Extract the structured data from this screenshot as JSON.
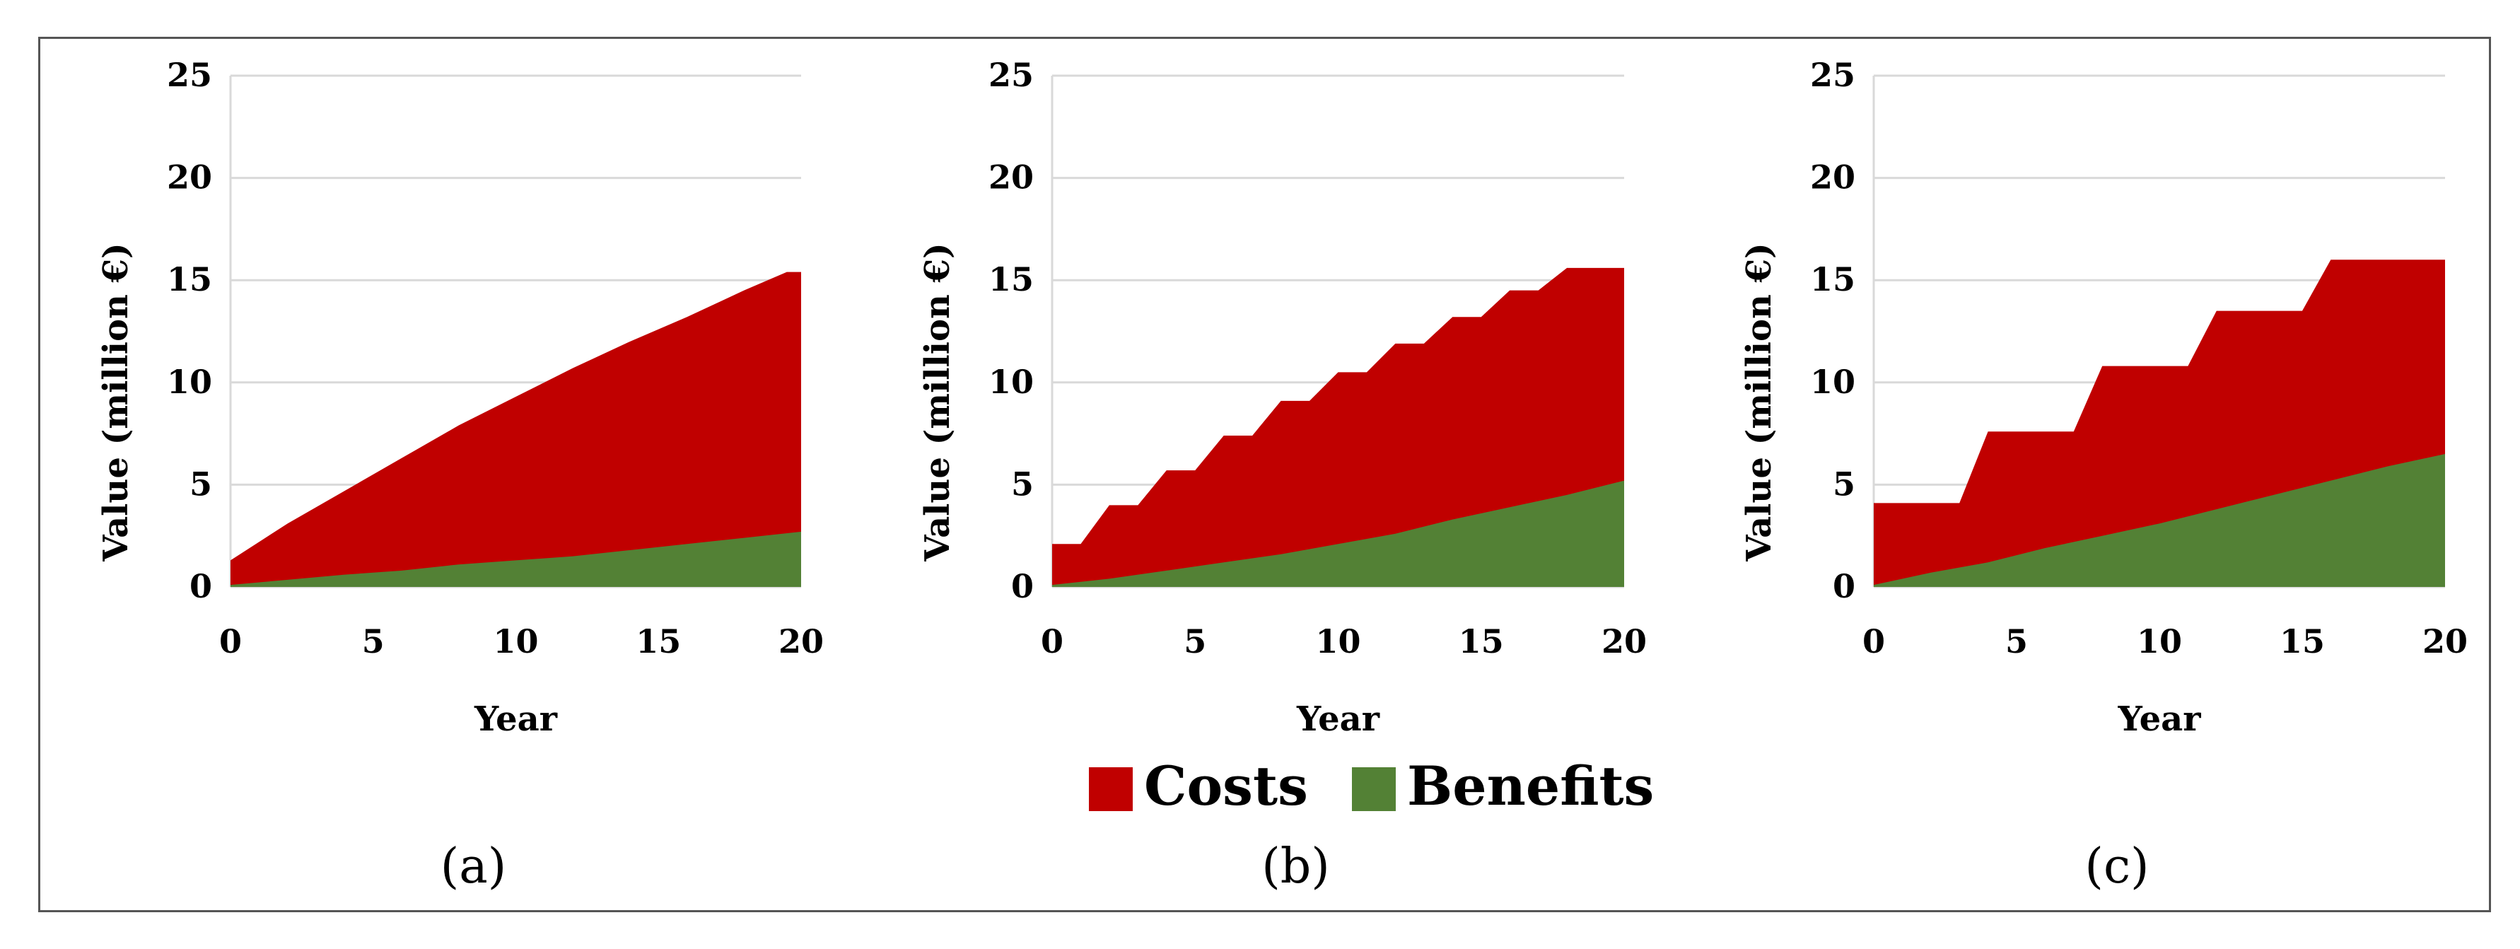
{
  "chart_data": [
    {
      "panel_label": "(a)",
      "type": "area",
      "stacked": false,
      "xlabel": "Year",
      "ylabel": "Value (million €)",
      "xlim": [
        0,
        20
      ],
      "ylim": [
        0,
        25
      ],
      "x_ticks": [
        "0",
        "5",
        "10",
        "15",
        "20"
      ],
      "y_ticks": [
        "0",
        "5",
        "10",
        "15",
        "20",
        "25"
      ],
      "grid": true,
      "series": [
        {
          "name": "Costs",
          "color": "#c00000",
          "x": [
            0,
            2,
            4,
            6,
            8,
            10,
            12,
            14,
            16,
            18,
            19.5,
            20
          ],
          "values": [
            1.3,
            3.1,
            4.7,
            6.3,
            7.9,
            9.3,
            10.7,
            12.0,
            13.2,
            14.5,
            15.4,
            15.4
          ]
        },
        {
          "name": "Benefits",
          "color": "#538135",
          "x": [
            0,
            2,
            4,
            6,
            8,
            10,
            12,
            14,
            16,
            18,
            20
          ],
          "values": [
            0.1,
            0.35,
            0.6,
            0.8,
            1.1,
            1.3,
            1.5,
            1.8,
            2.1,
            2.4,
            2.7
          ]
        }
      ]
    },
    {
      "panel_label": "(b)",
      "type": "area",
      "stacked": false,
      "xlabel": "Year",
      "ylabel": "Value (million €)",
      "xlim": [
        0,
        20
      ],
      "ylim": [
        0,
        25
      ],
      "x_ticks": [
        "0",
        "5",
        "10",
        "15",
        "20"
      ],
      "y_ticks": [
        "0",
        "5",
        "10",
        "15",
        "20",
        "25"
      ],
      "grid": true,
      "series": [
        {
          "name": "Costs",
          "color": "#c00000",
          "x": [
            0,
            1,
            2,
            3,
            4,
            5,
            6,
            7,
            8,
            9,
            10,
            11,
            12,
            13,
            14,
            15,
            16,
            17,
            18,
            19,
            20
          ],
          "values": [
            2.1,
            2.1,
            4.0,
            4.0,
            5.7,
            5.7,
            7.4,
            7.4,
            9.1,
            9.1,
            10.5,
            10.5,
            11.9,
            11.9,
            13.2,
            13.2,
            14.5,
            14.5,
            15.6,
            15.6,
            15.6
          ]
        },
        {
          "name": "Benefits",
          "color": "#538135",
          "x": [
            0,
            2,
            4,
            6,
            8,
            10,
            12,
            14,
            16,
            18,
            20
          ],
          "values": [
            0.1,
            0.4,
            0.8,
            1.2,
            1.6,
            2.1,
            2.6,
            3.3,
            3.9,
            4.5,
            5.2
          ]
        }
      ]
    },
    {
      "panel_label": "(c)",
      "type": "area",
      "stacked": false,
      "xlabel": "Year",
      "ylabel": "Value (million €)",
      "xlim": [
        0,
        20
      ],
      "ylim": [
        0,
        25
      ],
      "x_ticks": [
        "0",
        "5",
        "10",
        "15",
        "20"
      ],
      "y_ticks": [
        "0",
        "5",
        "10",
        "15",
        "20",
        "25"
      ],
      "grid": true,
      "series": [
        {
          "name": "Costs",
          "color": "#c00000",
          "x": [
            0,
            1,
            2,
            3,
            4,
            5,
            6,
            7,
            8,
            9,
            10,
            11,
            12,
            13,
            14,
            15,
            16,
            17,
            18,
            19,
            20
          ],
          "values": [
            4.1,
            4.1,
            4.1,
            4.1,
            7.6,
            7.6,
            7.6,
            7.6,
            10.8,
            10.8,
            10.8,
            10.8,
            13.5,
            13.5,
            13.5,
            13.5,
            16.0,
            16.0,
            16.0,
            16.0,
            16.0
          ]
        },
        {
          "name": "Benefits",
          "color": "#538135",
          "x": [
            0,
            2,
            4,
            6,
            8,
            10,
            12,
            14,
            16,
            18,
            20
          ],
          "values": [
            0.1,
            0.7,
            1.2,
            1.9,
            2.5,
            3.1,
            3.8,
            4.5,
            5.2,
            5.9,
            6.5
          ]
        }
      ]
    }
  ],
  "legend": {
    "items": [
      {
        "label": "Costs",
        "color": "#c00000"
      },
      {
        "label": "Benefits",
        "color": "#538135"
      }
    ],
    "placement": "bottom-center"
  }
}
